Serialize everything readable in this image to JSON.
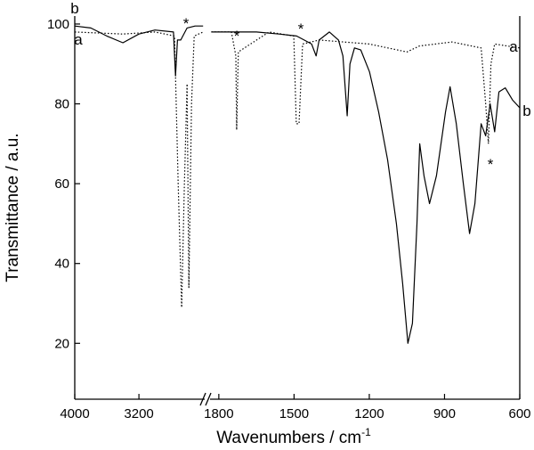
{
  "chart_data": {
    "type": "line",
    "xlabel": "Wavenumbers / cm",
    "xlabel_superscript": "-1",
    "ylabel": "Transmittance / a.u.",
    "ylim": [
      6,
      102
    ],
    "yticks": [
      20,
      40,
      60,
      80,
      100
    ],
    "x_segments": [
      {
        "xlim": [
          4000,
          2380
        ],
        "xticks": [
          4000,
          3200
        ]
      },
      {
        "xlim": [
          1835,
          600
        ],
        "xticks": [
          1800,
          1500,
          1200,
          900,
          600
        ]
      }
    ],
    "series": [
      {
        "name": "a",
        "color": "#000000",
        "style": "dotted",
        "x": [
          4000,
          3400,
          3000,
          2756,
          2711,
          2667,
          2633,
          2600,
          2578,
          2544,
          2511,
          2400,
          null,
          1830,
          1750,
          1732,
          1729,
          1722,
          1600,
          1501,
          1491,
          1480,
          1466,
          1400,
          1200,
          1050,
          1000,
          870,
          754,
          736,
          725,
          715,
          700,
          600
        ],
        "values": [
          98,
          97.5,
          98,
          97,
          60,
          29,
          60,
          85,
          34,
          80,
          97,
          98,
          null,
          98,
          98,
          92,
          73.5,
          93,
          98,
          97,
          75,
          75,
          95,
          96,
          95,
          93,
          94.5,
          95.5,
          94,
          80,
          70,
          90,
          95,
          94
        ]
      },
      {
        "name": "b",
        "color": "#000000",
        "style": "solid",
        "x": [
          4000,
          3800,
          3600,
          3400,
          3200,
          3000,
          2770,
          2744,
          2720,
          2678,
          2600,
          2500,
          2400,
          null,
          1830,
          1750,
          1650,
          1560,
          1490,
          1460,
          1430,
          1412,
          1400,
          1359,
          1323,
          1305,
          1288,
          1277,
          1259,
          1234,
          1199,
          1163,
          1127,
          1092,
          1067,
          1046,
          1028,
          1010,
          999,
          982,
          960,
          932,
          896,
          878,
          853,
          825,
          800,
          779,
          754,
          736,
          718,
          700,
          683,
          658,
          629,
          600
        ],
        "values": [
          99.5,
          99,
          97,
          95.3,
          97.5,
          98.5,
          98,
          87,
          96,
          96,
          99,
          99.5,
          99.5,
          null,
          98,
          98,
          98,
          97.5,
          97,
          96,
          95,
          92,
          96,
          98,
          96,
          92,
          77,
          90,
          94,
          93.5,
          88,
          78,
          66,
          50,
          35,
          20,
          25,
          50,
          70,
          62,
          55,
          62,
          78,
          84.3,
          75,
          60,
          47.5,
          55,
          75,
          72,
          80,
          73,
          83,
          84,
          81,
          79
        ]
      }
    ],
    "annotations": [
      "b",
      "a",
      "a",
      "b",
      "*",
      "*",
      "*",
      "*"
    ]
  }
}
